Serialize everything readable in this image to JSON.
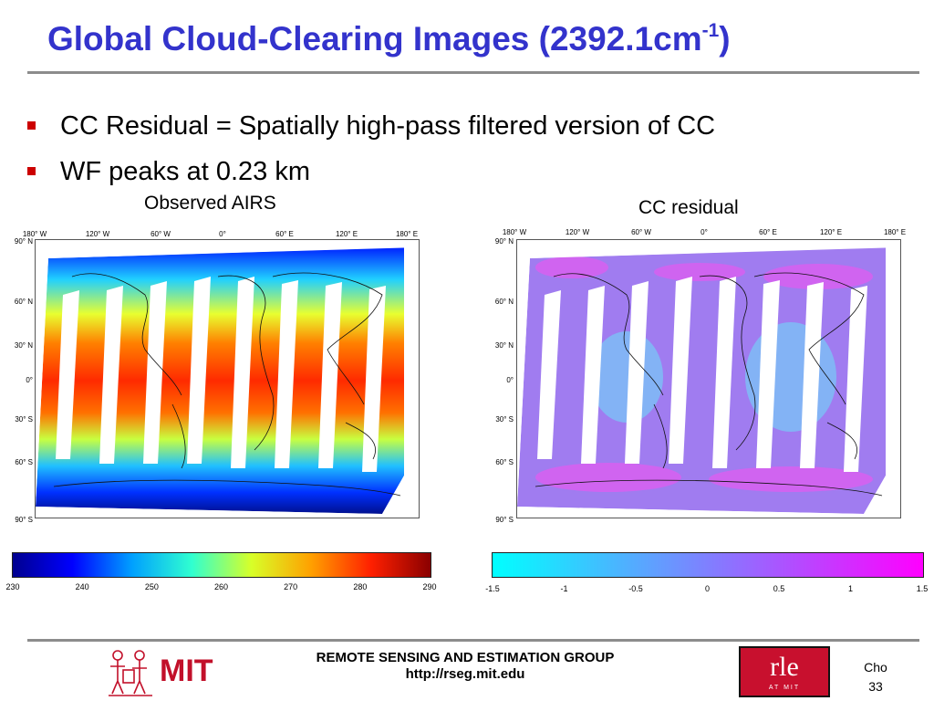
{
  "slide": {
    "title": "Global Cloud-Clearing Images (2392.1cm",
    "title_sup": "-1",
    "title_end": ")",
    "bullets": [
      "CC Residual = Spatially high-pass filtered version of CC",
      "WF peaks at 0.23 km"
    ]
  },
  "maps": {
    "lon_ticks": [
      "180° W",
      "120° W",
      "60° W",
      "0°",
      "60° E",
      "120° E",
      "180° E"
    ],
    "lat_ticks": [
      "90° N",
      "60° N",
      "30° N",
      "0°",
      "30° S",
      "60° S",
      "90° S"
    ],
    "left": {
      "caption": "Observed AIRS",
      "colorbar_labels": [
        "230",
        "240",
        "250",
        "260",
        "270",
        "280",
        "290"
      ],
      "colorbar_colors": [
        "#00008f",
        "#0000ff",
        "#00a0ff",
        "#30ffd0",
        "#d8ff28",
        "#ffa000",
        "#ff2000",
        "#8a0000"
      ]
    },
    "right": {
      "caption": "CC residual",
      "colorbar_labels": [
        "-1.5",
        "-1",
        "-0.5",
        "0",
        "0.5",
        "1",
        "1.5"
      ],
      "colorbar_colors": [
        "#00ffff",
        "#ff00ff"
      ]
    }
  },
  "footer": {
    "group": "REMOTE SENSING AND ESTIMATION GROUP",
    "url": "http://rseg.mit.edu",
    "mit": "MIT",
    "rle": "rle",
    "rle_sub": "AT MIT",
    "author": "Cho",
    "page": "33"
  }
}
